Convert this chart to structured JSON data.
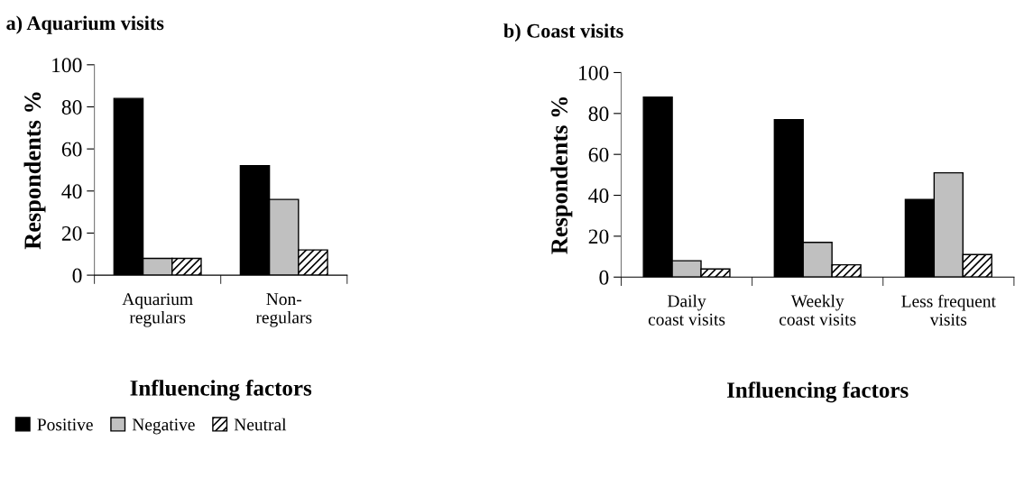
{
  "chart_data": [
    {
      "type": "bar",
      "title": "a) Aquarium visits",
      "xlabel": "Influencing factors",
      "ylabel": "Respondents %",
      "categories": [
        "Aquarium\nregulars",
        "Non-\nregulars"
      ],
      "series": [
        {
          "name": "Positive",
          "color": "#000000",
          "values": [
            84,
            52
          ]
        },
        {
          "name": "Negative",
          "color": "#c0c0c0",
          "values": [
            8,
            36
          ]
        },
        {
          "name": "Neutral",
          "color": "#000000",
          "values": [
            8,
            12
          ]
        }
      ],
      "ylim": [
        0,
        100
      ],
      "yticks": [
        0,
        20,
        40,
        60,
        80,
        100
      ],
      "grid": false,
      "legend": "bottom left"
    },
    {
      "type": "bar",
      "title": "b) Coast visits",
      "xlabel": "Influencing factors",
      "ylabel": "Respondents %",
      "categories": [
        "Daily\ncoast visits",
        "Weekly\ncoast visits",
        "Less frequent\nvisits"
      ],
      "series": [
        {
          "color": "#000000",
          "values": [
            88,
            77,
            38
          ]
        },
        {
          "color": "#c0c0c0",
          "values": [
            8,
            17,
            51
          ]
        },
        {
          "color": "#000000",
          "values": [
            4,
            6,
            11
          ]
        }
      ],
      "ylim": [
        0,
        100
      ],
      "yticks": [
        0,
        20,
        40,
        60,
        80,
        100
      ],
      "grid": false,
      "legend": false
    }
  ]
}
